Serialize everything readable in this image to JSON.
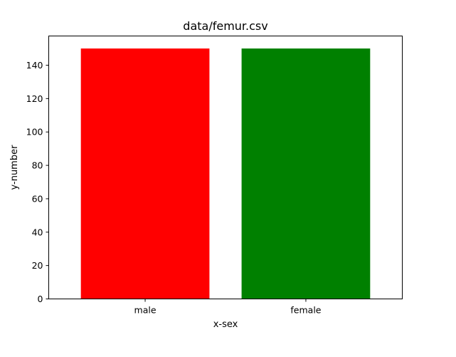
{
  "chart_data": {
    "type": "bar",
    "title": "data/femur.csv",
    "xlabel": "x-sex",
    "ylabel": "y-number",
    "categories": [
      "male",
      "female"
    ],
    "values": [
      150,
      150
    ],
    "colors": [
      "#ff0000",
      "#008000"
    ],
    "ylim": [
      0,
      157.5
    ],
    "yticks": [
      0,
      20,
      40,
      60,
      80,
      100,
      120,
      140
    ],
    "grid": false,
    "legend": "none"
  }
}
